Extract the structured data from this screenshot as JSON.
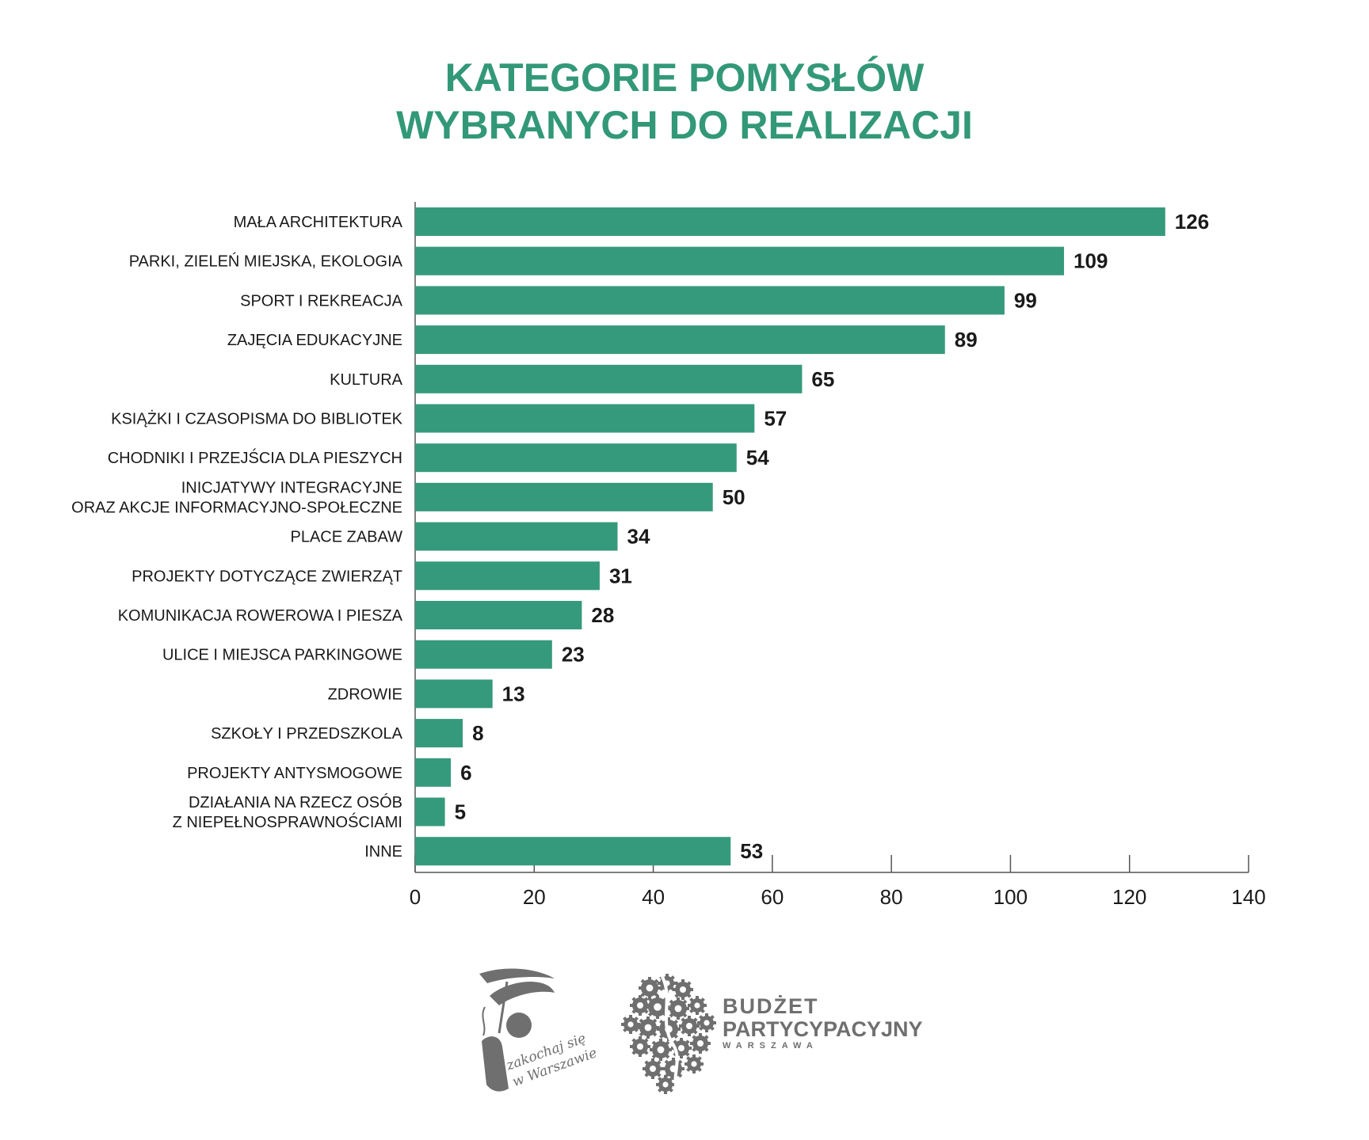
{
  "title": {
    "line1": "KATEGORIE POMYSŁÓW",
    "line2": "WYBRANYCH DO REALIZACJI"
  },
  "colors": {
    "bar": "#359a7b",
    "title": "#329878",
    "text": "#1a1a1a",
    "logo": "#6f6f6f"
  },
  "chart_data": {
    "type": "bar",
    "orientation": "horizontal",
    "title": "KATEGORIE POMYSŁÓW WYBRANYCH DO REALIZACJI",
    "xlabel": "",
    "ylabel": "",
    "xlim": [
      0,
      140
    ],
    "x_ticks": [
      0,
      20,
      40,
      60,
      80,
      100,
      120,
      140
    ],
    "grid": false,
    "legend": "none",
    "categories": [
      [
        "MAŁA ARCHITEKTURA"
      ],
      [
        "PARKI, ZIELEŃ MIEJSKA, EKOLOGIA"
      ],
      [
        "SPORT I REKREACJA"
      ],
      [
        "ZAJĘCIA EDUKACYJNE"
      ],
      [
        "KULTURA"
      ],
      [
        "KSIĄŻKI I CZASOPISMA DO BIBLIOTEK"
      ],
      [
        "CHODNIKI I PRZEJŚCIA DLA PIESZYCH"
      ],
      [
        "INICJATYWY INTEGRACYJNE",
        "ORAZ AKCJE INFORMACYJNO-SPOŁECZNE"
      ],
      [
        "PLACE ZABAW"
      ],
      [
        "PROJEKTY DOTYCZĄCE ZWIERZĄT"
      ],
      [
        "KOMUNIKACJA ROWEROWA I PIESZA"
      ],
      [
        "ULICE I MIEJSCA PARKINGOWE"
      ],
      [
        "ZDROWIE"
      ],
      [
        "SZKOŁY I PRZEDSZKOLA"
      ],
      [
        "PROJEKTY ANTYSMOGOWE"
      ],
      [
        "DZIAŁANIA NA RZECZ OSÓB",
        "Z NIEPEŁNOSPRAWNOŚCIAMI"
      ],
      [
        "INNE"
      ]
    ],
    "values": [
      126,
      109,
      99,
      89,
      65,
      57,
      54,
      50,
      34,
      31,
      28,
      23,
      13,
      8,
      6,
      5,
      53
    ]
  },
  "logos": {
    "left_logo": {
      "icon": "mermaid-logo-icon",
      "text": "zakochaj się w Warszawie"
    },
    "right_logo": {
      "icon": "gears-map-icon",
      "line1": "BUDŻET",
      "line2": "PARTYCYPACYJNY",
      "line3": "WARSZAWA"
    }
  }
}
